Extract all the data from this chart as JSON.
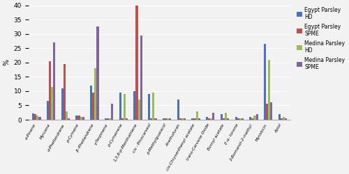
{
  "categories": [
    "α-Pinene",
    "Myrcene",
    "α-Phellandrene",
    "p-Cymene",
    "β–Phellandrene",
    "γ-Terpinene",
    "p-Cymenene",
    "1,3,8-p-Menthatriene",
    "cis - Pinocarveol",
    "p-Methylguaiacol",
    "Anethofuran",
    "cis-Chrysanthenyl acetate",
    "trans-Carvone Oxide",
    "Bornyl acetate",
    "E-α- Ionone",
    "2-Bornanol-2-methyl",
    "Myristicin",
    "Apiol"
  ],
  "series": {
    "Egypt Parsley\nHD": [
      2.2,
      6.5,
      11.0,
      1.5,
      12.0,
      0.5,
      9.5,
      10.0,
      9.0,
      0.5,
      7.0,
      0.5,
      1.0,
      2.0,
      1.0,
      1.0,
      26.5,
      2.0
    ],
    "Egypt Parsley\nSPME": [
      2.0,
      20.5,
      19.5,
      1.5,
      9.5,
      0.5,
      0.5,
      40.0,
      0.5,
      0.5,
      0.5,
      0.5,
      0.5,
      0.5,
      0.5,
      0.5,
      5.5,
      0.5
    ],
    "Medina Parsley\nHD": [
      1.5,
      11.5,
      3.0,
      1.0,
      18.0,
      0.5,
      9.0,
      7.0,
      9.5,
      0.5,
      0.5,
      3.0,
      0.5,
      2.5,
      0.5,
      1.5,
      21.0,
      1.0
    ],
    "Medina Parsley\nSPME": [
      1.0,
      27.0,
      0.5,
      1.0,
      32.5,
      5.5,
      0.5,
      29.5,
      0.5,
      0.5,
      0.5,
      0.5,
      2.5,
      0.5,
      0.5,
      2.0,
      6.0,
      0.5
    ]
  },
  "colors": {
    "Egypt Parsley\nHD": "#4472C4",
    "Egypt Parsley\nSPME": "#C0504D",
    "Medina Parsley\nHD": "#9BBB59",
    "Medina Parsley\nSPME": "#8064A2"
  },
  "ylabel": "%",
  "ylim": [
    0,
    40
  ],
  "yticks": [
    0,
    5,
    10,
    15,
    20,
    25,
    30,
    35,
    40
  ],
  "bar_width": 0.15,
  "figsize": [
    5.0,
    2.5
  ],
  "dpi": 100,
  "xlabel_fontsize": 4.2,
  "ylabel_fontsize": 7,
  "ytick_fontsize": 6.5,
  "legend_fontsize": 5.5,
  "bg_color": "#f2f2f2"
}
